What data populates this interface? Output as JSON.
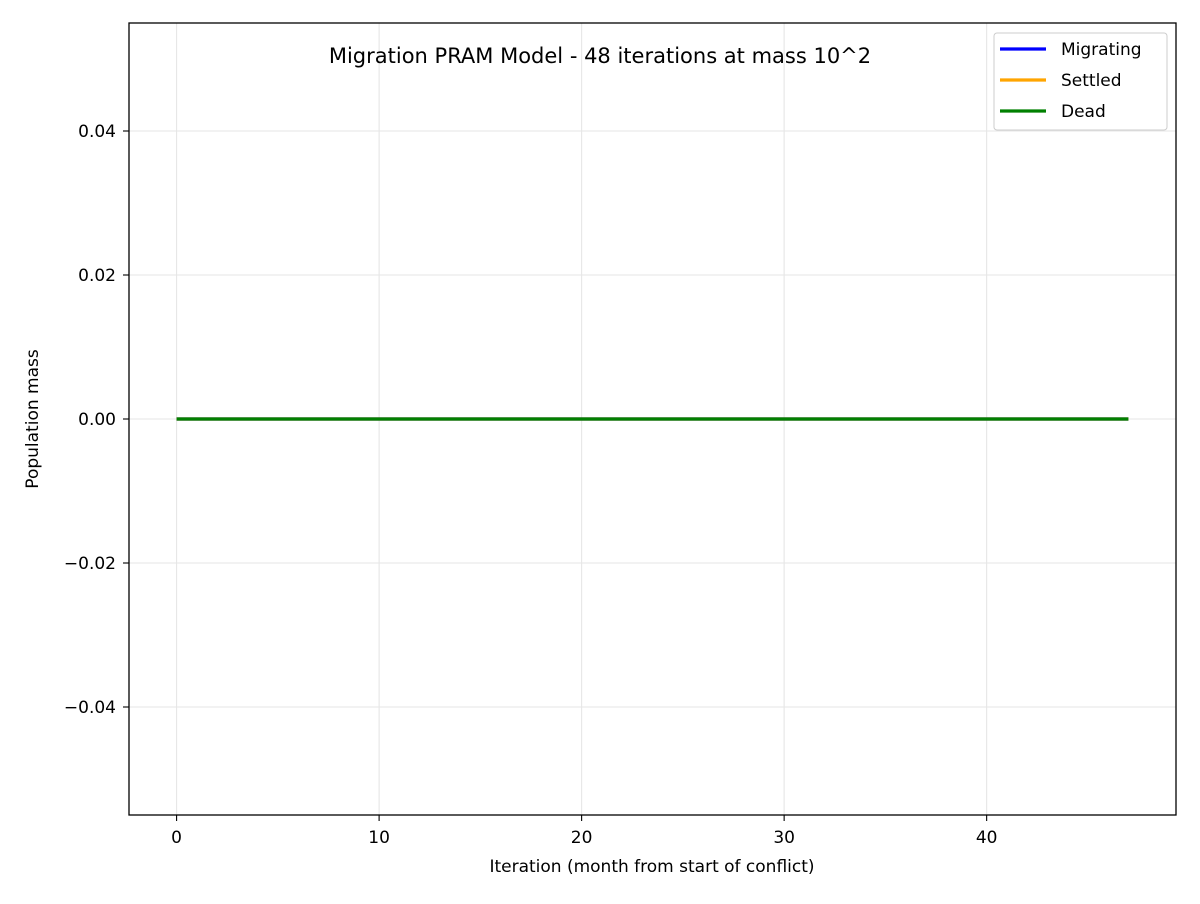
{
  "chart_data": {
    "type": "line",
    "title": "Migration PRAM Model - 48 iterations at mass 10^2",
    "xlabel": "Iteration (month from start of conflict)",
    "ylabel": "Population mass",
    "xlim": [
      -2.35,
      49.35
    ],
    "ylim": [
      -0.055,
      0.055
    ],
    "x_ticks": [
      0,
      10,
      20,
      30,
      40
    ],
    "x_tick_labels": [
      "0",
      "10",
      "20",
      "30",
      "40"
    ],
    "y_ticks": [
      -0.04,
      -0.02,
      0.0,
      0.02,
      0.04
    ],
    "y_tick_labels": [
      "−0.04",
      "−0.02",
      "0.00",
      "0.02",
      "0.04"
    ],
    "grid": true,
    "legend_position": "top-right",
    "x": [
      0,
      1,
      2,
      3,
      4,
      5,
      6,
      7,
      8,
      9,
      10,
      11,
      12,
      13,
      14,
      15,
      16,
      17,
      18,
      19,
      20,
      21,
      22,
      23,
      24,
      25,
      26,
      27,
      28,
      29,
      30,
      31,
      32,
      33,
      34,
      35,
      36,
      37,
      38,
      39,
      40,
      41,
      42,
      43,
      44,
      45,
      46,
      47
    ],
    "series": [
      {
        "name": "Migrating",
        "color": "#0000ff",
        "values": [
          0,
          0,
          0,
          0,
          0,
          0,
          0,
          0,
          0,
          0,
          0,
          0,
          0,
          0,
          0,
          0,
          0,
          0,
          0,
          0,
          0,
          0,
          0,
          0,
          0,
          0,
          0,
          0,
          0,
          0,
          0,
          0,
          0,
          0,
          0,
          0,
          0,
          0,
          0,
          0,
          0,
          0,
          0,
          0,
          0,
          0,
          0,
          0
        ]
      },
      {
        "name": "Settled",
        "color": "#ffa500",
        "values": [
          0,
          0,
          0,
          0,
          0,
          0,
          0,
          0,
          0,
          0,
          0,
          0,
          0,
          0,
          0,
          0,
          0,
          0,
          0,
          0,
          0,
          0,
          0,
          0,
          0,
          0,
          0,
          0,
          0,
          0,
          0,
          0,
          0,
          0,
          0,
          0,
          0,
          0,
          0,
          0,
          0,
          0,
          0,
          0,
          0,
          0,
          0,
          0
        ]
      },
      {
        "name": "Dead",
        "color": "#008000",
        "values": [
          0,
          0,
          0,
          0,
          0,
          0,
          0,
          0,
          0,
          0,
          0,
          0,
          0,
          0,
          0,
          0,
          0,
          0,
          0,
          0,
          0,
          0,
          0,
          0,
          0,
          0,
          0,
          0,
          0,
          0,
          0,
          0,
          0,
          0,
          0,
          0,
          0,
          0,
          0,
          0,
          0,
          0,
          0,
          0,
          0,
          0,
          0,
          0
        ]
      }
    ]
  }
}
